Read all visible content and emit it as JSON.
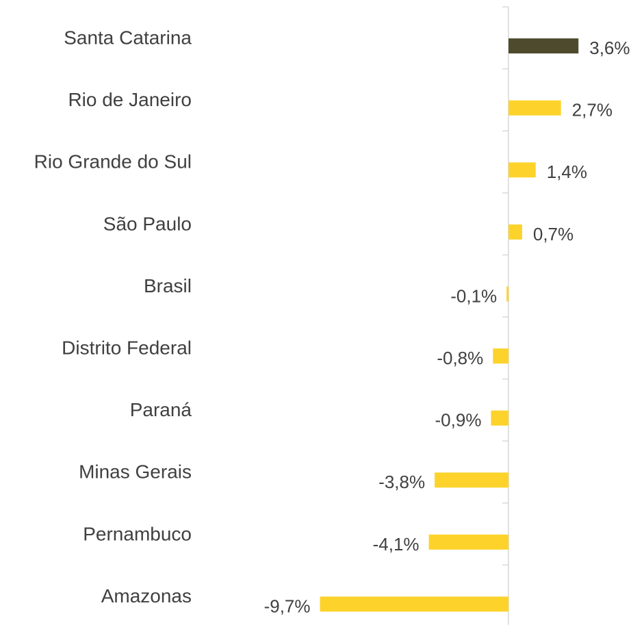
{
  "chart_data": {
    "type": "bar",
    "orientation": "horizontal",
    "categories": [
      "Santa Catarina",
      "Rio de Janeiro",
      "Rio Grande do Sul",
      "São Paulo",
      "Brasil",
      "Distrito Federal",
      "Paraná",
      "Minas Gerais",
      "Pernambuco",
      "Amazonas"
    ],
    "values": [
      3.6,
      2.7,
      1.4,
      0.7,
      -0.1,
      -0.8,
      -0.9,
      -3.8,
      -4.1,
      -9.7
    ],
    "value_labels": [
      "3,6%",
      "2,7%",
      "1,4%",
      "0,7%",
      "-0,1%",
      "-0,8%",
      "-0,9%",
      "-3,8%",
      "-4,1%",
      "-9,7%"
    ],
    "colors": [
      "#4d4a2e",
      "#fdd32b",
      "#fdd32b",
      "#fdd32b",
      "#fdd32b",
      "#fdd32b",
      "#fdd32b",
      "#fdd32b",
      "#fdd32b",
      "#fdd32b"
    ]
  }
}
